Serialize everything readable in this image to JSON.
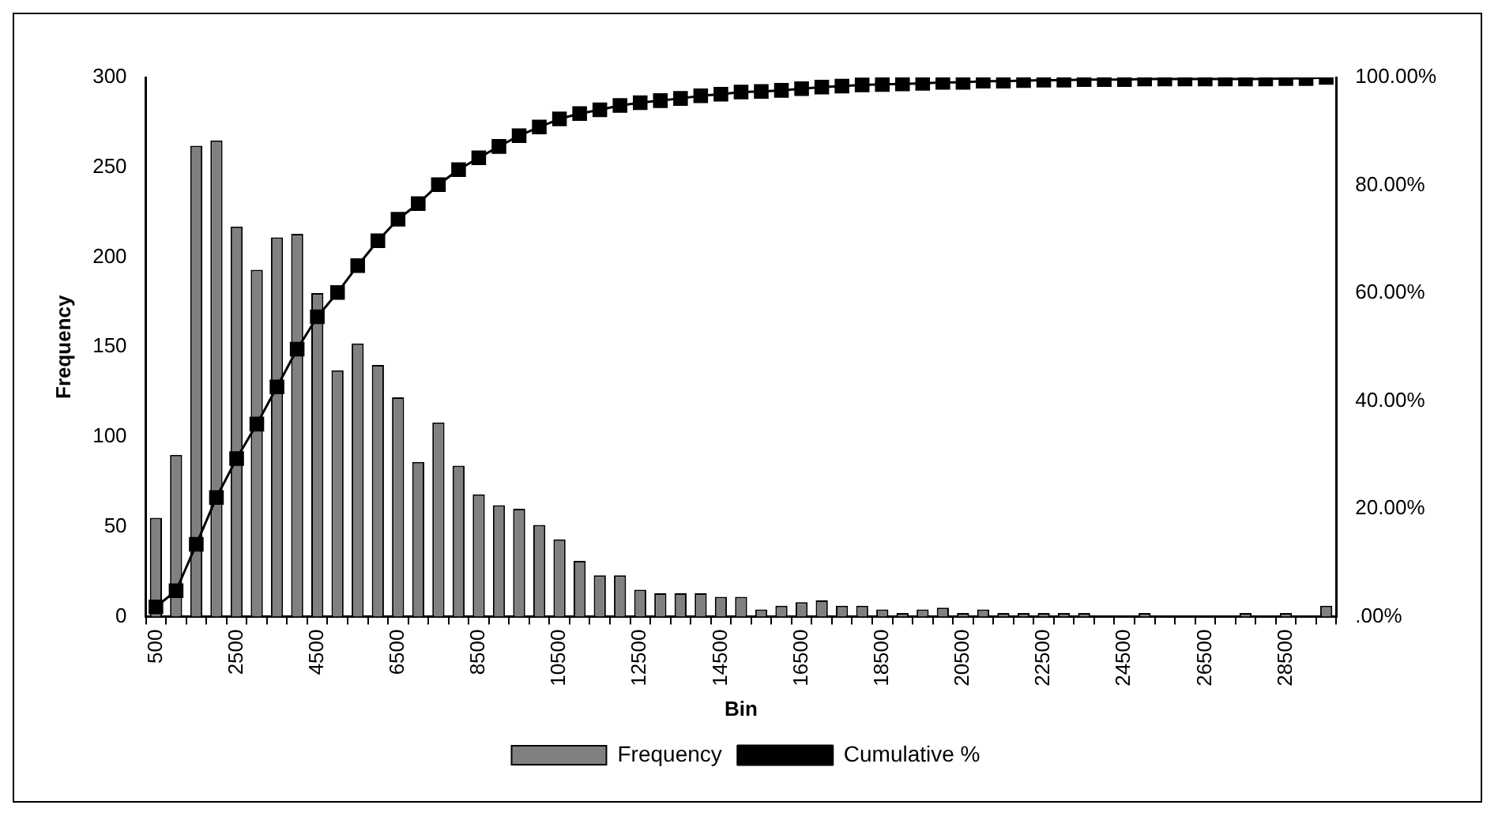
{
  "chart_data": {
    "type": "bar",
    "xlabel": "Bin",
    "ylabel": "Frequency",
    "categories": [
      "500",
      null,
      null,
      null,
      "2500",
      null,
      null,
      null,
      "4500",
      null,
      null,
      null,
      "6500",
      null,
      null,
      null,
      "8500",
      null,
      null,
      null,
      "10500",
      null,
      null,
      null,
      "12500",
      null,
      null,
      null,
      "14500",
      null,
      null,
      null,
      "16500",
      null,
      null,
      null,
      "18500",
      null,
      null,
      null,
      "20500",
      null,
      null,
      null,
      "22500",
      null,
      null,
      null,
      "24500",
      null,
      null,
      null,
      "26500",
      null,
      null,
      null,
      "28500",
      null,
      null
    ],
    "series": [
      {
        "name": "Frequency",
        "color": "#808080",
        "values": [
          55,
          90,
          262,
          265,
          217,
          193,
          211,
          213,
          180,
          137,
          152,
          140,
          122,
          86,
          108,
          84,
          68,
          62,
          60,
          51,
          43,
          31,
          23,
          23,
          15,
          13,
          13,
          13,
          11,
          11,
          4,
          6,
          8,
          9,
          6,
          6,
          4,
          2,
          4,
          5,
          2,
          4,
          2,
          2,
          2,
          2,
          2,
          0,
          0,
          2,
          0,
          0,
          0,
          0,
          2,
          0,
          2,
          0,
          6
        ]
      },
      {
        "name": "Cumulative %",
        "type": "line",
        "axis": "y2",
        "color": "#000000",
        "marker": "square",
        "values": [
          1.8,
          4.8,
          13.4,
          22.1,
          29.3,
          35.7,
          42.6,
          49.6,
          55.6,
          60.1,
          65.1,
          69.7,
          73.7,
          76.6,
          80.1,
          82.9,
          85.1,
          87.2,
          89.2,
          90.8,
          92.3,
          93.3,
          94.0,
          94.8,
          95.3,
          95.7,
          96.1,
          96.6,
          96.9,
          97.3,
          97.4,
          97.6,
          97.9,
          98.2,
          98.4,
          98.6,
          98.7,
          98.8,
          98.9,
          99.1,
          99.1,
          99.3,
          99.3,
          99.4,
          99.5,
          99.5,
          99.6,
          99.6,
          99.6,
          99.7,
          99.7,
          99.7,
          99.7,
          99.7,
          99.7,
          99.7,
          99.8,
          99.8,
          100
        ]
      }
    ],
    "ylim": [
      0,
      300
    ],
    "yticks": [
      0,
      50,
      100,
      150,
      200,
      250,
      300
    ],
    "y2lim": [
      0,
      100
    ],
    "y2ticks": [
      {
        "value": 0,
        "label": ".00%"
      },
      {
        "value": 20,
        "label": "20.00%"
      },
      {
        "value": 40,
        "label": "40.00%"
      },
      {
        "value": 60,
        "label": "60.00%"
      },
      {
        "value": 80,
        "label": "80.00%"
      },
      {
        "value": 100,
        "label": "100.00%"
      }
    ],
    "grid": false,
    "legend": "bottom"
  }
}
